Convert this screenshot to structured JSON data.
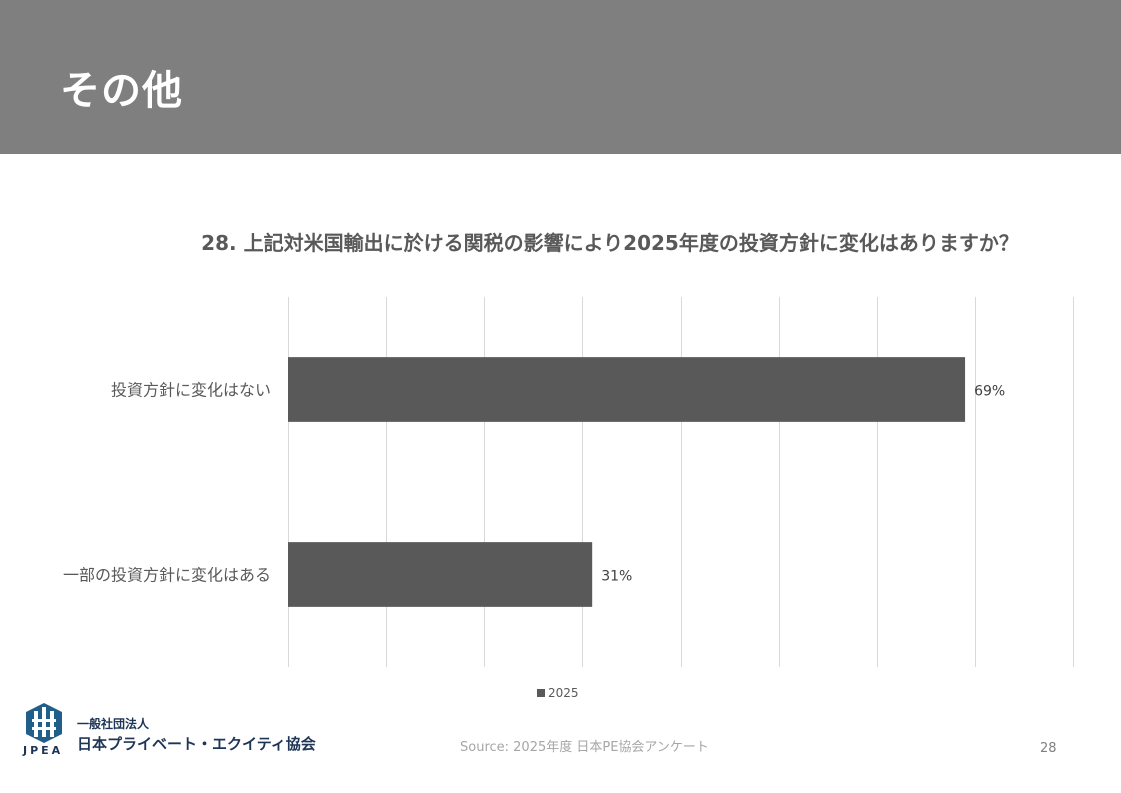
{
  "header": {
    "title": "その他"
  },
  "chart_data": {
    "type": "bar",
    "orientation": "horizontal",
    "title": "28. 上記対米国輸出に於ける関税の影響により2025年度の投資方針に変化はありますか？",
    "categories": [
      "投資方針に変化はない",
      "一部の投資方針に変化はある"
    ],
    "series": [
      {
        "name": "2025",
        "values": [
          69,
          31
        ],
        "color": "#595959"
      }
    ],
    "data_labels": [
      "69%",
      "31%"
    ],
    "xlim": [
      0,
      80
    ],
    "grid": true,
    "legend": "bottom"
  },
  "footer": {
    "source": "Source: 2025年度 日本PE協会アンケート",
    "page_number": "28",
    "logo": {
      "abbr": "JPEA",
      "line1": "一般社団法人",
      "line2": "日本プライベート・エクイティ協会"
    }
  }
}
